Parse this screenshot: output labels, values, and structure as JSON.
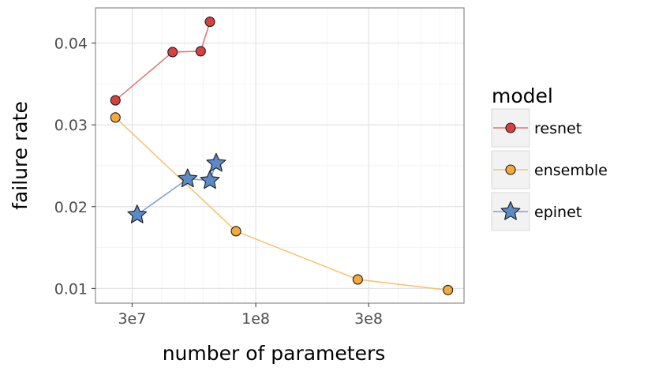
{
  "chart_data": {
    "type": "scatter",
    "xscale": "log",
    "xlabel": "number of parameters",
    "ylabel": "failure rate",
    "xlim": [
      21000000,
      760000000
    ],
    "ylim": [
      0.0082,
      0.0443
    ],
    "xticks": [
      {
        "value": 30000000,
        "label": "3e7"
      },
      {
        "value": 100000000,
        "label": "1e8"
      },
      {
        "value": 300000000,
        "label": "3e8"
      }
    ],
    "yticks": [
      {
        "value": 0.01,
        "label": "0.01"
      },
      {
        "value": 0.02,
        "label": "0.02"
      },
      {
        "value": 0.03,
        "label": "0.03"
      },
      {
        "value": 0.04,
        "label": "0.04"
      }
    ],
    "grid": true,
    "legend": {
      "title": "model",
      "position": "right"
    },
    "series": [
      {
        "name": "resnet",
        "color": "#d94141",
        "line_color": "#e07777",
        "marker": "circle",
        "x": [
          25500000,
          44500000,
          58500000,
          64000000
        ],
        "y": [
          0.033,
          0.0389,
          0.039,
          0.0426
        ]
      },
      {
        "name": "ensemble",
        "color": "#f5a93b",
        "line_color": "#f5c470",
        "marker": "circle",
        "x": [
          25500000,
          82500000,
          270000000,
          650000000
        ],
        "y": [
          0.0309,
          0.017,
          0.0111,
          0.0098
        ]
      },
      {
        "name": "epinet",
        "color": "#5b8ac6",
        "line_color": "#7fa2cf",
        "marker": "star",
        "x": [
          31500000,
          51500000,
          64000000,
          68000000
        ],
        "y": [
          0.019,
          0.0234,
          0.0232,
          0.0253
        ]
      }
    ]
  }
}
